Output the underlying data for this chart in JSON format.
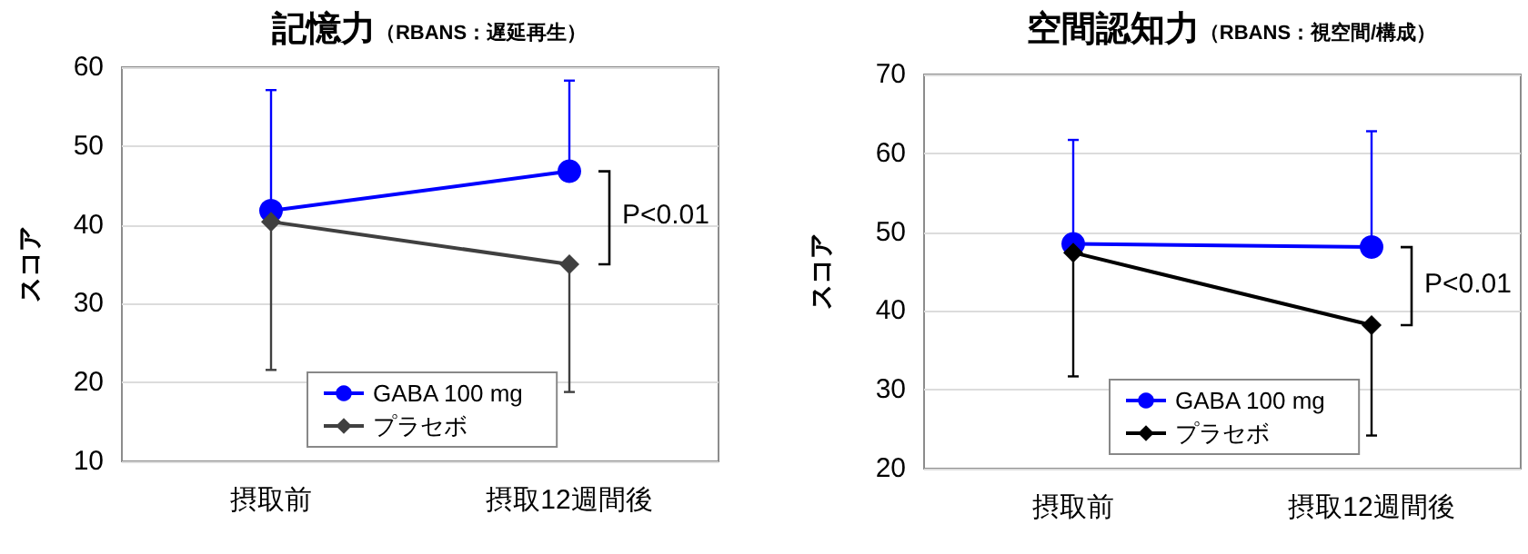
{
  "chart_data": [
    {
      "type": "line",
      "title": "記憶力",
      "subtitle": "（RBANS：遅延再生）",
      "ylabel": "スコア",
      "categories": [
        "摂取前",
        "摂取12週間後"
      ],
      "ylim": [
        10,
        60
      ],
      "yticks": [
        10,
        20,
        30,
        40,
        50,
        60
      ],
      "grid": "y",
      "legend": "bottom",
      "annotations": [
        "P<0.01"
      ],
      "series": [
        {
          "name": "GABA 100 mg",
          "color": "#0000ff",
          "marker": "circle",
          "values": [
            41.8,
            46.8
          ],
          "errors": [
            [
              41.8,
              57.1
            ],
            [
              46.8,
              58.3
            ]
          ]
        },
        {
          "name": "プラセボ",
          "color": "#404040",
          "marker": "diamond",
          "values": [
            40.4,
            35.0
          ],
          "errors": [
            [
              21.6,
              40.4
            ],
            [
              18.8,
              35.0
            ]
          ]
        }
      ]
    },
    {
      "type": "line",
      "title": "空間認知力",
      "subtitle": "（RBANS：視空間/構成）",
      "ylabel": "スコア",
      "categories": [
        "摂取前",
        "摂取12週間後"
      ],
      "ylim": [
        20,
        70
      ],
      "yticks": [
        20,
        30,
        40,
        50,
        60,
        70
      ],
      "grid": "y",
      "legend": "bottom",
      "annotations": [
        "P<0.01"
      ],
      "series": [
        {
          "name": "GABA 100 mg",
          "color": "#0000ff",
          "marker": "circle",
          "values": [
            48.5,
            48.1
          ],
          "errors": [
            [
              48.5,
              61.7
            ],
            [
              48.1,
              62.8
            ]
          ]
        },
        {
          "name": "プラセボ",
          "color": "#000000",
          "marker": "diamond",
          "values": [
            47.4,
            38.2
          ],
          "errors": [
            [
              31.7,
              47.4
            ],
            [
              24.2,
              38.2
            ]
          ]
        }
      ]
    }
  ]
}
